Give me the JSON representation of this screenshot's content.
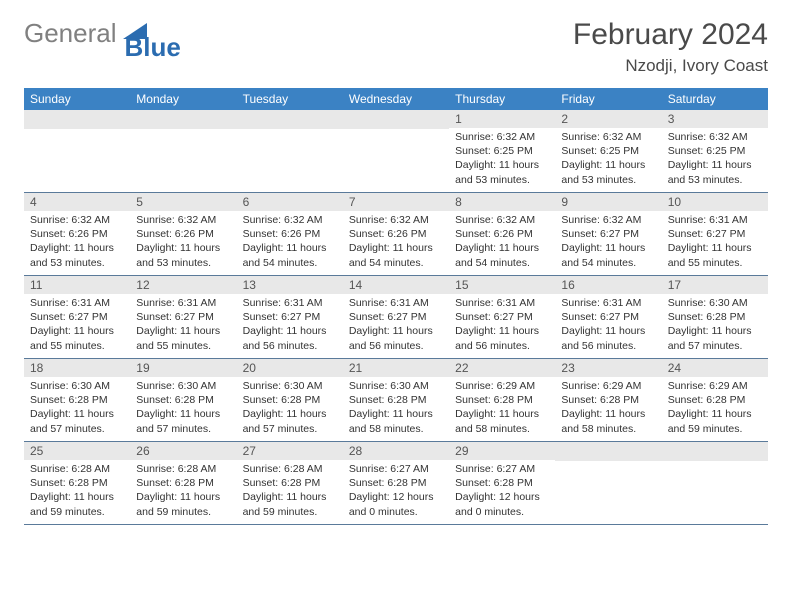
{
  "logo": {
    "gray": "General",
    "blue": "Blue"
  },
  "title": "February 2024",
  "location": "Nzodji, Ivory Coast",
  "colors": {
    "header_bg": "#3b82c4",
    "daynum_bg": "#e8e8e8",
    "divider": "#5a7a9a",
    "logo_gray": "#808080",
    "logo_blue": "#2b6cb0"
  },
  "weekdays": [
    "Sunday",
    "Monday",
    "Tuesday",
    "Wednesday",
    "Thursday",
    "Friday",
    "Saturday"
  ],
  "weeks": [
    [
      null,
      null,
      null,
      null,
      {
        "n": "1",
        "sunrise": "6:32 AM",
        "sunset": "6:25 PM",
        "daylight": "11 hours and 53 minutes."
      },
      {
        "n": "2",
        "sunrise": "6:32 AM",
        "sunset": "6:25 PM",
        "daylight": "11 hours and 53 minutes."
      },
      {
        "n": "3",
        "sunrise": "6:32 AM",
        "sunset": "6:25 PM",
        "daylight": "11 hours and 53 minutes."
      }
    ],
    [
      {
        "n": "4",
        "sunrise": "6:32 AM",
        "sunset": "6:26 PM",
        "daylight": "11 hours and 53 minutes."
      },
      {
        "n": "5",
        "sunrise": "6:32 AM",
        "sunset": "6:26 PM",
        "daylight": "11 hours and 53 minutes."
      },
      {
        "n": "6",
        "sunrise": "6:32 AM",
        "sunset": "6:26 PM",
        "daylight": "11 hours and 54 minutes."
      },
      {
        "n": "7",
        "sunrise": "6:32 AM",
        "sunset": "6:26 PM",
        "daylight": "11 hours and 54 minutes."
      },
      {
        "n": "8",
        "sunrise": "6:32 AM",
        "sunset": "6:26 PM",
        "daylight": "11 hours and 54 minutes."
      },
      {
        "n": "9",
        "sunrise": "6:32 AM",
        "sunset": "6:27 PM",
        "daylight": "11 hours and 54 minutes."
      },
      {
        "n": "10",
        "sunrise": "6:31 AM",
        "sunset": "6:27 PM",
        "daylight": "11 hours and 55 minutes."
      }
    ],
    [
      {
        "n": "11",
        "sunrise": "6:31 AM",
        "sunset": "6:27 PM",
        "daylight": "11 hours and 55 minutes."
      },
      {
        "n": "12",
        "sunrise": "6:31 AM",
        "sunset": "6:27 PM",
        "daylight": "11 hours and 55 minutes."
      },
      {
        "n": "13",
        "sunrise": "6:31 AM",
        "sunset": "6:27 PM",
        "daylight": "11 hours and 56 minutes."
      },
      {
        "n": "14",
        "sunrise": "6:31 AM",
        "sunset": "6:27 PM",
        "daylight": "11 hours and 56 minutes."
      },
      {
        "n": "15",
        "sunrise": "6:31 AM",
        "sunset": "6:27 PM",
        "daylight": "11 hours and 56 minutes."
      },
      {
        "n": "16",
        "sunrise": "6:31 AM",
        "sunset": "6:27 PM",
        "daylight": "11 hours and 56 minutes."
      },
      {
        "n": "17",
        "sunrise": "6:30 AM",
        "sunset": "6:28 PM",
        "daylight": "11 hours and 57 minutes."
      }
    ],
    [
      {
        "n": "18",
        "sunrise": "6:30 AM",
        "sunset": "6:28 PM",
        "daylight": "11 hours and 57 minutes."
      },
      {
        "n": "19",
        "sunrise": "6:30 AM",
        "sunset": "6:28 PM",
        "daylight": "11 hours and 57 minutes."
      },
      {
        "n": "20",
        "sunrise": "6:30 AM",
        "sunset": "6:28 PM",
        "daylight": "11 hours and 57 minutes."
      },
      {
        "n": "21",
        "sunrise": "6:30 AM",
        "sunset": "6:28 PM",
        "daylight": "11 hours and 58 minutes."
      },
      {
        "n": "22",
        "sunrise": "6:29 AM",
        "sunset": "6:28 PM",
        "daylight": "11 hours and 58 minutes."
      },
      {
        "n": "23",
        "sunrise": "6:29 AM",
        "sunset": "6:28 PM",
        "daylight": "11 hours and 58 minutes."
      },
      {
        "n": "24",
        "sunrise": "6:29 AM",
        "sunset": "6:28 PM",
        "daylight": "11 hours and 59 minutes."
      }
    ],
    [
      {
        "n": "25",
        "sunrise": "6:28 AM",
        "sunset": "6:28 PM",
        "daylight": "11 hours and 59 minutes."
      },
      {
        "n": "26",
        "sunrise": "6:28 AM",
        "sunset": "6:28 PM",
        "daylight": "11 hours and 59 minutes."
      },
      {
        "n": "27",
        "sunrise": "6:28 AM",
        "sunset": "6:28 PM",
        "daylight": "11 hours and 59 minutes."
      },
      {
        "n": "28",
        "sunrise": "6:27 AM",
        "sunset": "6:28 PM",
        "daylight": "12 hours and 0 minutes."
      },
      {
        "n": "29",
        "sunrise": "6:27 AM",
        "sunset": "6:28 PM",
        "daylight": "12 hours and 0 minutes."
      },
      null,
      null
    ]
  ],
  "labels": {
    "sunrise": "Sunrise: ",
    "sunset": "Sunset: ",
    "daylight": "Daylight: "
  }
}
